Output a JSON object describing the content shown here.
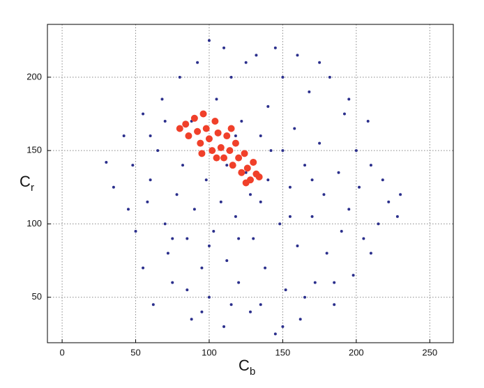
{
  "chart_data": {
    "type": "scatter",
    "xlabel": "C",
    "xlabel_subscript": "b",
    "ylabel": "C",
    "ylabel_subscript": "r",
    "xlim": [
      -10,
      266
    ],
    "ylim": [
      19,
      236
    ],
    "xticks": [
      0,
      50,
      100,
      150,
      200,
      250
    ],
    "yticks": [
      50,
      100,
      150,
      200
    ],
    "grid": true,
    "series": [
      {
        "color": "#2b2f8c",
        "x": [
          30,
          35,
          42,
          45,
          50,
          55,
          55,
          60,
          62,
          65,
          68,
          70,
          72,
          75,
          78,
          80,
          82,
          85,
          88,
          90,
          92,
          95,
          98,
          100,
          100,
          103,
          105,
          108,
          110,
          112,
          115,
          118,
          120,
          122,
          125,
          128,
          130,
          132,
          135,
          138,
          140,
          142,
          145,
          148,
          150,
          152,
          155,
          158,
          160,
          162,
          165,
          168,
          170,
          172,
          175,
          178,
          180,
          182,
          185,
          188,
          190,
          192,
          195,
          198,
          200,
          202,
          205,
          208,
          210,
          215,
          218,
          222,
          228,
          230,
          60,
          70,
          48,
          85,
          95,
          110,
          125,
          145,
          160,
          175,
          195,
          210,
          185,
          165,
          150,
          135,
          115,
          95,
          75,
          58,
          112,
          128,
          140,
          155,
          170,
          88,
          100,
          120,
          135,
          150,
          118
        ],
        "y": [
          142,
          125,
          160,
          110,
          95,
          175,
          70,
          130,
          45,
          150,
          185,
          100,
          80,
          60,
          120,
          200,
          140,
          90,
          35,
          110,
          210,
          70,
          130,
          50,
          225,
          95,
          185,
          115,
          30,
          75,
          200,
          105,
          60,
          170,
          135,
          40,
          90,
          215,
          115,
          70,
          180,
          150,
          25,
          100,
          200,
          55,
          125,
          165,
          85,
          35,
          140,
          190,
          105,
          60,
          155,
          120,
          80,
          200,
          45,
          135,
          95,
          175,
          110,
          65,
          150,
          125,
          90,
          170,
          140,
          100,
          130,
          115,
          105,
          120,
          160,
          170,
          140,
          55,
          155,
          220,
          210,
          220,
          215,
          210,
          185,
          80,
          60,
          50,
          30,
          45,
          45,
          40,
          90,
          115,
          140,
          120,
          130,
          105,
          130,
          170,
          85,
          90,
          160,
          150,
          160
        ]
      },
      {
        "color": "#f0402a",
        "x": [
          80,
          84,
          86,
          90,
          92,
          94,
          96,
          98,
          100,
          102,
          104,
          106,
          108,
          110,
          112,
          114,
          116,
          118,
          120,
          122,
          124,
          126,
          128,
          130,
          132,
          134,
          105,
          115,
          95,
          125
        ],
        "y": [
          165,
          168,
          160,
          172,
          163,
          155,
          175,
          165,
          158,
          150,
          170,
          162,
          152,
          145,
          160,
          150,
          140,
          155,
          145,
          135,
          148,
          138,
          130,
          142,
          134,
          132,
          145,
          165,
          148,
          128
        ]
      }
    ]
  }
}
